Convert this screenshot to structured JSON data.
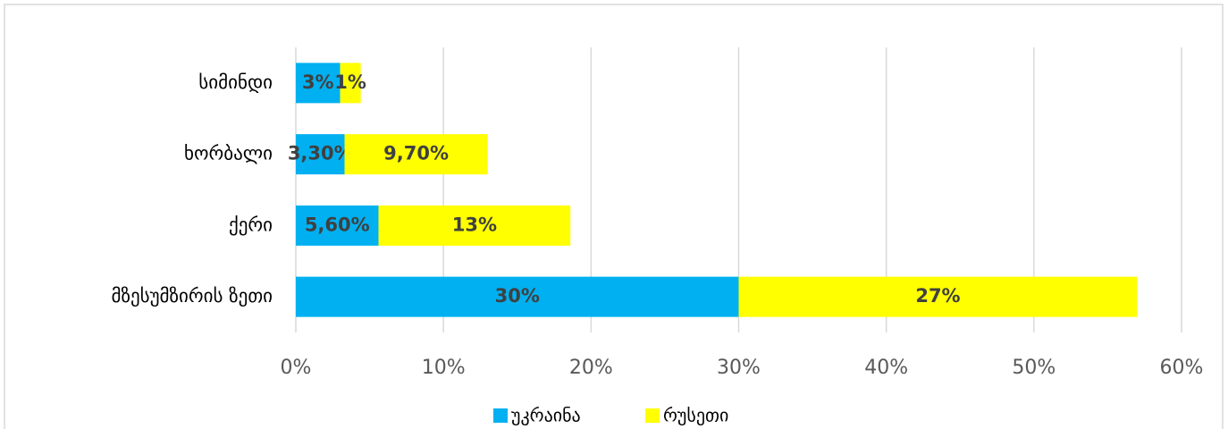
{
  "chart_data": {
    "type": "stacked_barh",
    "categories": [
      "სიმინდი",
      "ხორბალი",
      "ქერი",
      "მზესუმზირის ზეთი"
    ],
    "series": [
      {
        "name": "უკრაინა",
        "color": "#00b0f0",
        "values": [
          3,
          3.3,
          5.6,
          30
        ],
        "value_labels": [
          "3%",
          "3,30%",
          "5,60%",
          "30%"
        ]
      },
      {
        "name": "რუსეთი",
        "color": "#ffff00",
        "values": [
          1.4,
          9.7,
          13,
          27
        ],
        "value_labels": [
          "1%",
          "9,70%",
          "13%",
          "27%"
        ]
      }
    ],
    "xlim": [
      0,
      60
    ],
    "xticks": [
      {
        "value": 0,
        "label": "0%"
      },
      {
        "value": 10,
        "label": "10%"
      },
      {
        "value": 20,
        "label": "20%"
      },
      {
        "value": 30,
        "label": "30%"
      },
      {
        "value": 40,
        "label": "40%"
      },
      {
        "value": 50,
        "label": "50%"
      },
      {
        "value": 60,
        "label": "60%"
      }
    ],
    "grid": true,
    "legend": "bottom"
  }
}
